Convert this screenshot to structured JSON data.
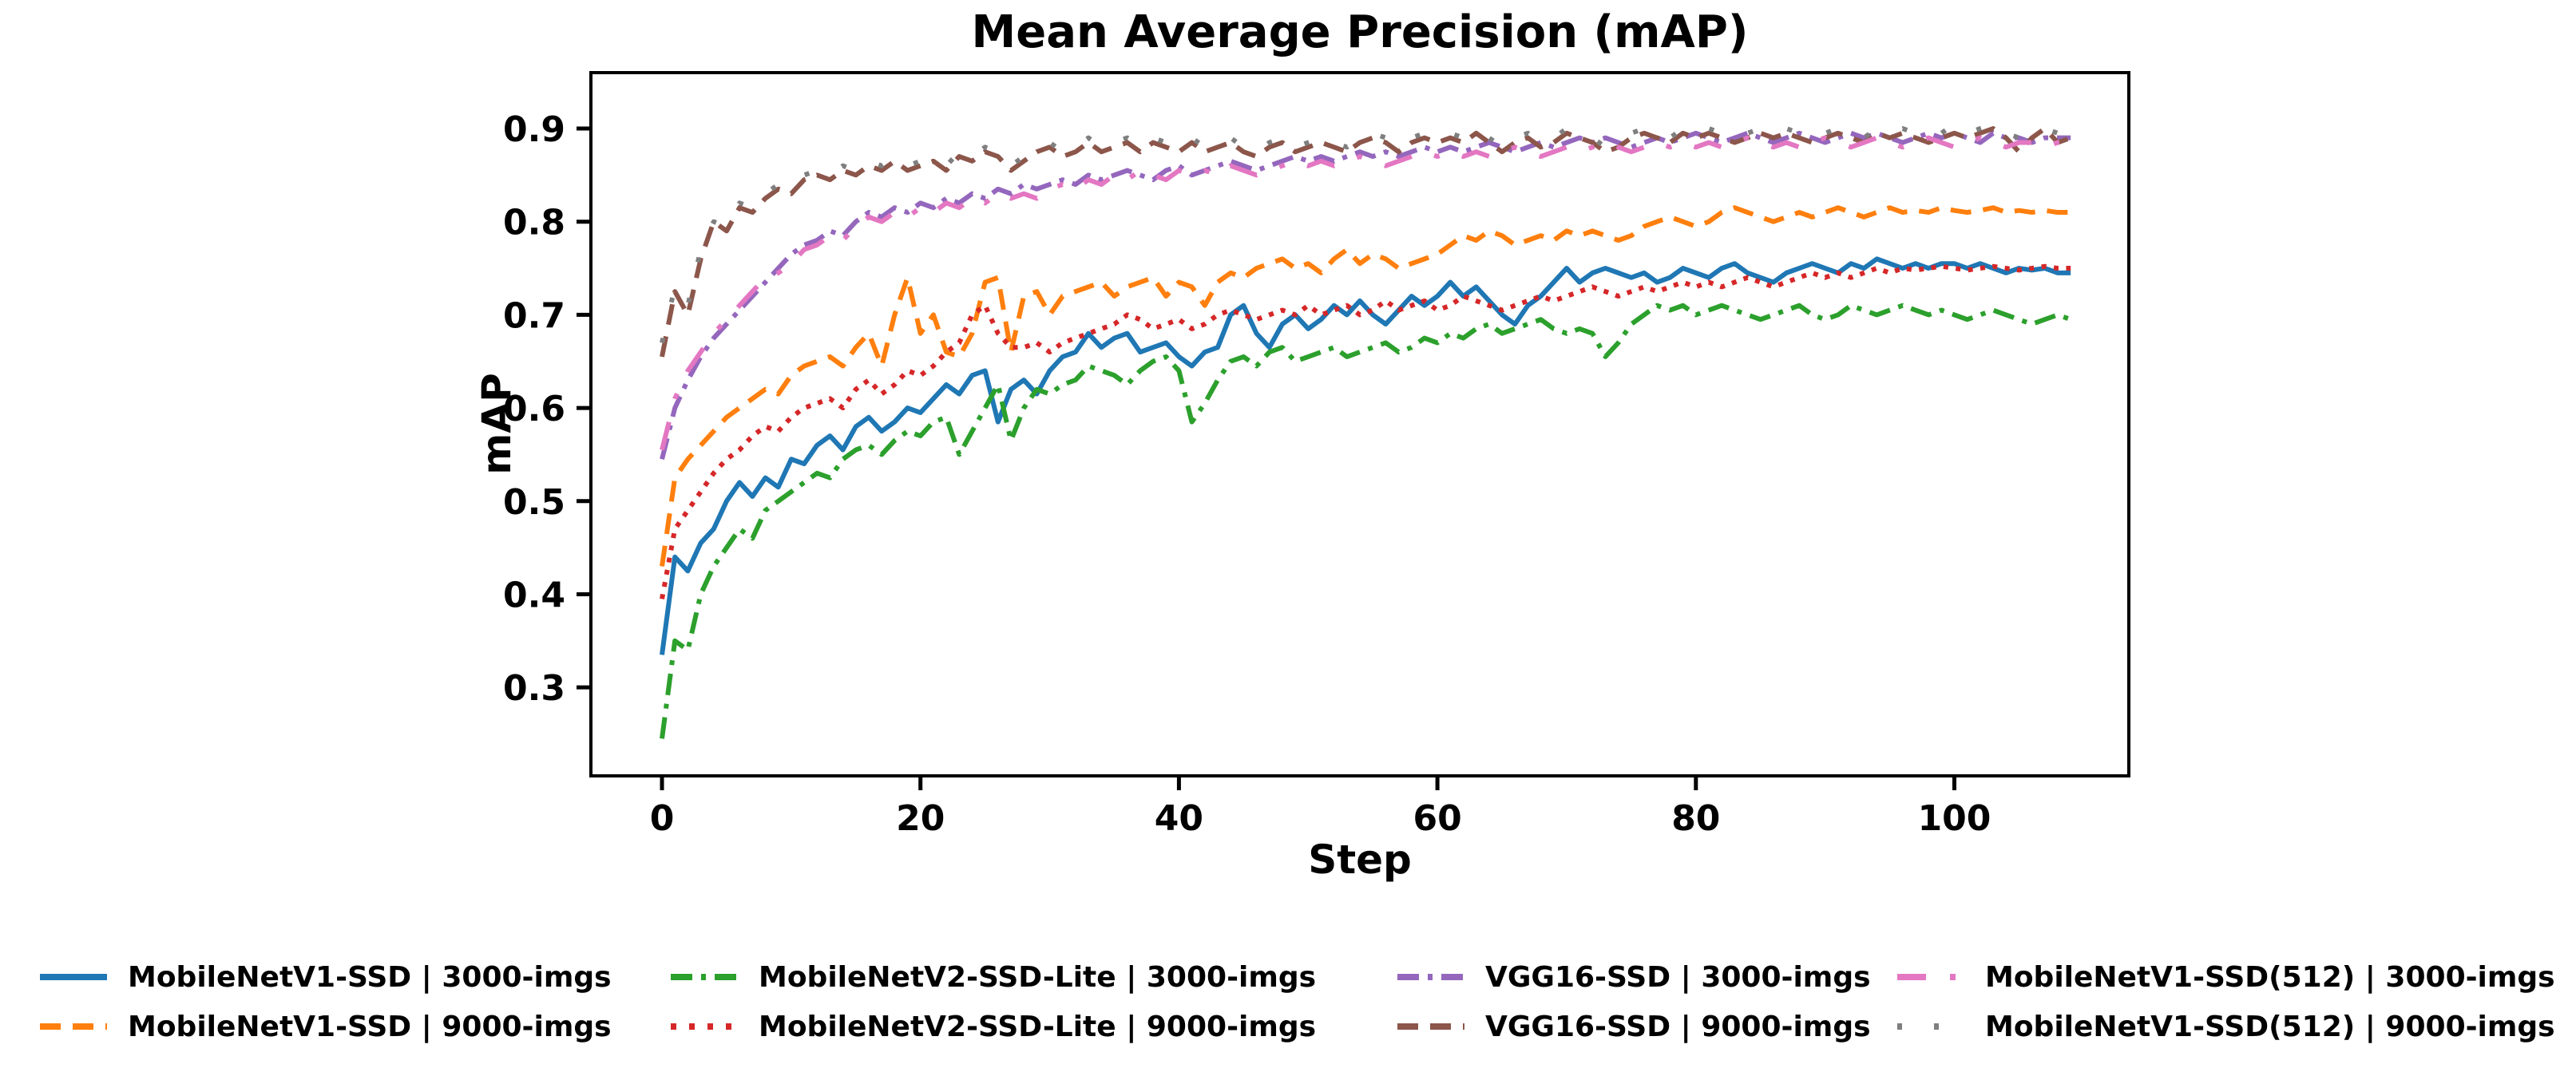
{
  "chart_data": {
    "type": "line",
    "title": "Mean Average Precision (mAP)",
    "xlabel": "Step",
    "ylabel": "mAP",
    "grid": false,
    "legend_position": "below-chart, 4 columns, 2 rows",
    "xlim": [
      -5.5,
      113.5
    ],
    "ylim": [
      0.205,
      0.96
    ],
    "x_range": [
      0,
      109
    ],
    "x_increment": 1,
    "x_ticks": [
      0,
      20,
      40,
      60,
      80,
      100
    ],
    "x_tick_labels": [
      "0",
      "20",
      "40",
      "60",
      "80",
      "100"
    ],
    "y_ticks": [
      0.3,
      0.4,
      0.5,
      0.6,
      0.7,
      0.8,
      0.9
    ],
    "y_tick_labels": [
      "0.3",
      "0.4",
      "0.5",
      "0.6",
      "0.7",
      "0.8",
      "0.9"
    ],
    "axis_color": "#000000",
    "series": [
      {
        "id": "mobilenetv1-ssd-3000",
        "name": "MobileNetV1-SSD | 3000-imgs",
        "color": "#1f77b4",
        "linestyle": "solid",
        "values": [
          0.335,
          0.44,
          0.425,
          0.455,
          0.47,
          0.5,
          0.52,
          0.505,
          0.525,
          0.515,
          0.545,
          0.54,
          0.56,
          0.57,
          0.555,
          0.58,
          0.59,
          0.575,
          0.585,
          0.6,
          0.595,
          0.61,
          0.625,
          0.615,
          0.635,
          0.64,
          0.585,
          0.62,
          0.63,
          0.615,
          0.64,
          0.655,
          0.66,
          0.68,
          0.665,
          0.675,
          0.68,
          0.66,
          0.665,
          0.67,
          0.655,
          0.645,
          0.66,
          0.665,
          0.7,
          0.71,
          0.68,
          0.665,
          0.69,
          0.7,
          0.685,
          0.695,
          0.71,
          0.7,
          0.715,
          0.7,
          0.69,
          0.705,
          0.72,
          0.71,
          0.72,
          0.735,
          0.72,
          0.73,
          0.715,
          0.7,
          0.69,
          0.71,
          0.72,
          0.735,
          0.75,
          0.735,
          0.745,
          0.75,
          0.745,
          0.74,
          0.745,
          0.735,
          0.74,
          0.75,
          0.745,
          0.74,
          0.75,
          0.755,
          0.745,
          0.74,
          0.735,
          0.745,
          0.75,
          0.755,
          0.75,
          0.745,
          0.755,
          0.75,
          0.76,
          0.755,
          0.75,
          0.755,
          0.75,
          0.755,
          0.755,
          0.75,
          0.755,
          0.75,
          0.745,
          0.75,
          0.748,
          0.75,
          0.745,
          0.745
        ]
      },
      {
        "id": "mobilenetv1-ssd-9000",
        "name": "MobileNetV1-SSD | 9000-imgs",
        "color": "#ff7f0e",
        "linestyle": "dashed",
        "values": [
          0.43,
          0.525,
          0.545,
          0.56,
          0.575,
          0.59,
          0.6,
          0.61,
          0.62,
          0.615,
          0.635,
          0.645,
          0.65,
          0.655,
          0.645,
          0.665,
          0.68,
          0.645,
          0.7,
          0.74,
          0.68,
          0.7,
          0.66,
          0.655,
          0.68,
          0.735,
          0.74,
          0.66,
          0.72,
          0.725,
          0.7,
          0.72,
          0.725,
          0.73,
          0.735,
          0.72,
          0.73,
          0.735,
          0.74,
          0.72,
          0.735,
          0.73,
          0.71,
          0.735,
          0.745,
          0.74,
          0.75,
          0.755,
          0.76,
          0.75,
          0.755,
          0.745,
          0.76,
          0.77,
          0.755,
          0.765,
          0.76,
          0.75,
          0.755,
          0.76,
          0.765,
          0.775,
          0.785,
          0.78,
          0.79,
          0.785,
          0.775,
          0.78,
          0.785,
          0.78,
          0.79,
          0.785,
          0.79,
          0.785,
          0.78,
          0.785,
          0.795,
          0.8,
          0.805,
          0.8,
          0.795,
          0.8,
          0.81,
          0.815,
          0.81,
          0.805,
          0.8,
          0.805,
          0.81,
          0.805,
          0.81,
          0.815,
          0.81,
          0.805,
          0.81,
          0.815,
          0.81,
          0.812,
          0.81,
          0.815,
          0.812,
          0.81,
          0.812,
          0.815,
          0.81,
          0.812,
          0.81,
          0.812,
          0.81,
          0.81
        ]
      },
      {
        "id": "mobilenetv2-ssd-lite-3000",
        "name": "MobileNetV2-SSD-Lite | 3000-imgs",
        "color": "#2ca02c",
        "linestyle": "dashdot",
        "values": [
          0.245,
          0.35,
          0.34,
          0.4,
          0.43,
          0.45,
          0.47,
          0.46,
          0.49,
          0.5,
          0.51,
          0.52,
          0.53,
          0.525,
          0.545,
          0.555,
          0.56,
          0.55,
          0.565,
          0.575,
          0.57,
          0.585,
          0.59,
          0.55,
          0.575,
          0.6,
          0.625,
          0.565,
          0.6,
          0.62,
          0.615,
          0.625,
          0.63,
          0.645,
          0.64,
          0.635,
          0.625,
          0.64,
          0.65,
          0.655,
          0.64,
          0.585,
          0.605,
          0.63,
          0.65,
          0.655,
          0.645,
          0.66,
          0.665,
          0.65,
          0.655,
          0.66,
          0.665,
          0.655,
          0.66,
          0.665,
          0.67,
          0.66,
          0.665,
          0.675,
          0.67,
          0.68,
          0.675,
          0.685,
          0.69,
          0.68,
          0.685,
          0.69,
          0.695,
          0.685,
          0.68,
          0.685,
          0.68,
          0.655,
          0.67,
          0.69,
          0.7,
          0.71,
          0.705,
          0.71,
          0.7,
          0.705,
          0.71,
          0.705,
          0.7,
          0.695,
          0.7,
          0.705,
          0.71,
          0.7,
          0.695,
          0.7,
          0.71,
          0.705,
          0.7,
          0.705,
          0.71,
          0.705,
          0.7,
          0.705,
          0.7,
          0.695,
          0.7,
          0.705,
          0.7,
          0.695,
          0.69,
          0.695,
          0.7,
          0.695
        ]
      },
      {
        "id": "mobilenetv2-ssd-lite-9000",
        "name": "MobileNetV2-SSD-Lite | 9000-imgs",
        "color": "#d62728",
        "linestyle": "dotted",
        "values": [
          0.395,
          0.47,
          0.49,
          0.51,
          0.53,
          0.545,
          0.555,
          0.57,
          0.58,
          0.575,
          0.59,
          0.6,
          0.605,
          0.61,
          0.6,
          0.62,
          0.63,
          0.615,
          0.625,
          0.64,
          0.635,
          0.645,
          0.66,
          0.67,
          0.7,
          0.71,
          0.68,
          0.665,
          0.665,
          0.67,
          0.66,
          0.67,
          0.675,
          0.68,
          0.685,
          0.69,
          0.7,
          0.695,
          0.685,
          0.69,
          0.695,
          0.685,
          0.69,
          0.7,
          0.705,
          0.7,
          0.695,
          0.7,
          0.705,
          0.7,
          0.71,
          0.7,
          0.705,
          0.71,
          0.7,
          0.705,
          0.715,
          0.705,
          0.71,
          0.715,
          0.705,
          0.71,
          0.72,
          0.715,
          0.71,
          0.705,
          0.71,
          0.715,
          0.72,
          0.715,
          0.72,
          0.725,
          0.73,
          0.725,
          0.72,
          0.725,
          0.73,
          0.725,
          0.73,
          0.735,
          0.73,
          0.735,
          0.73,
          0.735,
          0.74,
          0.735,
          0.73,
          0.735,
          0.74,
          0.745,
          0.74,
          0.745,
          0.74,
          0.745,
          0.75,
          0.745,
          0.75,
          0.748,
          0.75,
          0.752,
          0.75,
          0.748,
          0.75,
          0.752,
          0.75,
          0.748,
          0.75,
          0.752,
          0.75,
          0.75
        ]
      },
      {
        "id": "vgg16-ssd-3000",
        "name": "VGG16-SSD | 3000-imgs",
        "color": "#9467bd",
        "linestyle": "dashdot",
        "values": [
          0.545,
          0.6,
          0.63,
          0.655,
          0.675,
          0.69,
          0.705,
          0.72,
          0.735,
          0.75,
          0.765,
          0.775,
          0.78,
          0.79,
          0.785,
          0.8,
          0.81,
          0.805,
          0.815,
          0.81,
          0.82,
          0.815,
          0.825,
          0.82,
          0.83,
          0.825,
          0.835,
          0.83,
          0.84,
          0.835,
          0.84,
          0.845,
          0.84,
          0.85,
          0.845,
          0.85,
          0.855,
          0.85,
          0.845,
          0.855,
          0.86,
          0.85,
          0.855,
          0.86,
          0.865,
          0.86,
          0.855,
          0.86,
          0.865,
          0.87,
          0.865,
          0.87,
          0.865,
          0.87,
          0.875,
          0.87,
          0.875,
          0.87,
          0.875,
          0.88,
          0.875,
          0.88,
          0.875,
          0.88,
          0.885,
          0.88,
          0.875,
          0.88,
          0.885,
          0.88,
          0.885,
          0.89,
          0.885,
          0.89,
          0.885,
          0.88,
          0.885,
          0.89,
          0.885,
          0.89,
          0.895,
          0.89,
          0.885,
          0.89,
          0.895,
          0.89,
          0.885,
          0.89,
          0.895,
          0.89,
          0.885,
          0.89,
          0.895,
          0.89,
          0.895,
          0.89,
          0.885,
          0.89,
          0.895,
          0.89,
          0.895,
          0.89,
          0.885,
          0.895,
          0.89,
          0.89,
          0.885,
          0.89,
          0.89,
          0.89
        ]
      },
      {
        "id": "vgg16-ssd-9000",
        "name": "VGG16-SSD | 9000-imgs",
        "color": "#8c564b",
        "linestyle": "dashed",
        "values": [
          0.655,
          0.725,
          0.7,
          0.76,
          0.8,
          0.79,
          0.815,
          0.81,
          0.825,
          0.835,
          0.83,
          0.845,
          0.85,
          0.845,
          0.855,
          0.85,
          0.86,
          0.855,
          0.865,
          0.855,
          0.86,
          0.865,
          0.855,
          0.87,
          0.865,
          0.875,
          0.87,
          0.855,
          0.865,
          0.875,
          0.88,
          0.87,
          0.875,
          0.885,
          0.875,
          0.88,
          0.885,
          0.875,
          0.885,
          0.88,
          0.875,
          0.885,
          0.875,
          0.88,
          0.885,
          0.875,
          0.87,
          0.88,
          0.885,
          0.875,
          0.88,
          0.885,
          0.88,
          0.875,
          0.885,
          0.89,
          0.885,
          0.875,
          0.885,
          0.89,
          0.885,
          0.89,
          0.885,
          0.895,
          0.885,
          0.875,
          0.885,
          0.89,
          0.88,
          0.885,
          0.895,
          0.89,
          0.885,
          0.875,
          0.88,
          0.89,
          0.895,
          0.89,
          0.885,
          0.895,
          0.89,
          0.895,
          0.89,
          0.885,
          0.89,
          0.895,
          0.89,
          0.895,
          0.89,
          0.885,
          0.89,
          0.895,
          0.89,
          0.885,
          0.895,
          0.89,
          0.895,
          0.89,
          0.885,
          0.89,
          0.895,
          0.89,
          0.895,
          0.9,
          0.89,
          0.875,
          0.89,
          0.9,
          0.885,
          0.89
        ]
      },
      {
        "id": "mobilenetv1-ssd512-3000",
        "name": "MobileNetV1-SSD(512) | 3000-imgs",
        "color": "#e377c2",
        "linestyle": "dashdot-sparse",
        "values": [
          0.555,
          0.61,
          0.64,
          0.66,
          0.68,
          0.695,
          0.71,
          0.725,
          0.74,
          0.745,
          0.755,
          0.77,
          0.775,
          0.785,
          0.78,
          0.795,
          0.805,
          0.8,
          0.81,
          0.805,
          0.815,
          0.81,
          0.82,
          0.815,
          0.825,
          0.82,
          0.83,
          0.825,
          0.83,
          0.825,
          0.835,
          0.84,
          0.835,
          0.845,
          0.84,
          0.85,
          0.845,
          0.855,
          0.85,
          0.845,
          0.855,
          0.85,
          0.855,
          0.85,
          0.86,
          0.855,
          0.85,
          0.855,
          0.86,
          0.865,
          0.86,
          0.865,
          0.86,
          0.865,
          0.87,
          0.865,
          0.86,
          0.865,
          0.87,
          0.875,
          0.87,
          0.875,
          0.87,
          0.875,
          0.87,
          0.875,
          0.88,
          0.875,
          0.87,
          0.875,
          0.88,
          0.875,
          0.88,
          0.885,
          0.88,
          0.875,
          0.88,
          0.885,
          0.88,
          0.885,
          0.88,
          0.885,
          0.88,
          0.885,
          0.89,
          0.885,
          0.88,
          0.885,
          0.88,
          0.885,
          0.89,
          0.885,
          0.88,
          0.885,
          0.89,
          0.885,
          0.88,
          0.885,
          0.89,
          0.885,
          0.88,
          0.885,
          0.89,
          0.885,
          0.88,
          0.885,
          0.885,
          0.88,
          0.885,
          0.885
        ]
      },
      {
        "id": "mobilenetv1-ssd512-9000",
        "name": "MobileNetV1-SSD(512) | 9000-imgs",
        "color": "#7f7f7f",
        "linestyle": "dotted-sparse",
        "values": [
          0.67,
          0.73,
          0.71,
          0.77,
          0.8,
          0.795,
          0.82,
          0.815,
          0.83,
          0.84,
          0.835,
          0.85,
          0.855,
          0.85,
          0.86,
          0.855,
          0.865,
          0.86,
          0.87,
          0.86,
          0.865,
          0.87,
          0.86,
          0.875,
          0.87,
          0.88,
          0.875,
          0.86,
          0.87,
          0.88,
          0.885,
          0.875,
          0.88,
          0.89,
          0.88,
          0.885,
          0.89,
          0.88,
          0.89,
          0.885,
          0.88,
          0.89,
          0.88,
          0.885,
          0.89,
          0.88,
          0.875,
          0.885,
          0.89,
          0.88,
          0.885,
          0.89,
          0.885,
          0.88,
          0.89,
          0.895,
          0.89,
          0.88,
          0.89,
          0.895,
          0.89,
          0.895,
          0.89,
          0.9,
          0.89,
          0.88,
          0.89,
          0.895,
          0.885,
          0.89,
          0.9,
          0.895,
          0.89,
          0.88,
          0.885,
          0.895,
          0.9,
          0.895,
          0.89,
          0.9,
          0.895,
          0.9,
          0.895,
          0.89,
          0.895,
          0.9,
          0.895,
          0.9,
          0.895,
          0.89,
          0.895,
          0.9,
          0.895,
          0.89,
          0.9,
          0.895,
          0.9,
          0.895,
          0.89,
          0.895,
          0.905,
          0.895,
          0.9,
          0.905,
          0.895,
          0.89,
          0.895,
          0.9,
          0.895,
          0.895
        ]
      }
    ]
  }
}
